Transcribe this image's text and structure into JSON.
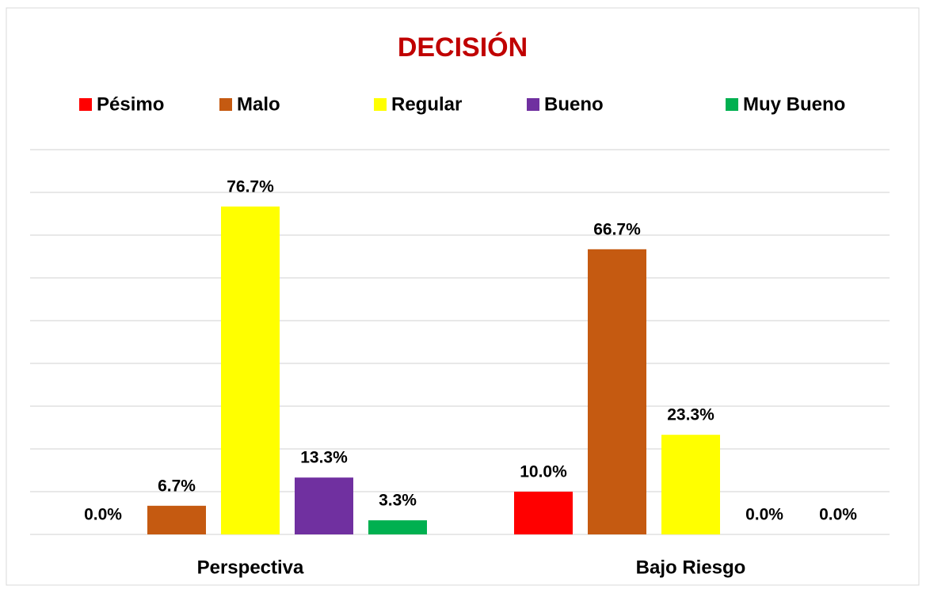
{
  "chart_data": {
    "type": "bar",
    "title": "DECISIÓN",
    "categories": [
      "Perspectiva",
      "Bajo Riesgo"
    ],
    "series": [
      {
        "name": "Pésimo",
        "color": "#ff0000",
        "values": [
          0.0,
          10.0
        ],
        "value_labels": [
          "0.0%",
          "10.0%"
        ]
      },
      {
        "name": "Malo",
        "color": "#c55a11",
        "values": [
          6.7,
          66.7
        ],
        "value_labels": [
          "6.7%",
          "66.7%"
        ]
      },
      {
        "name": "Regular",
        "color": "#ffff00",
        "values": [
          76.7,
          23.3
        ],
        "value_labels": [
          "76.7%",
          "23.3%"
        ]
      },
      {
        "name": "Bueno",
        "color": "#7030a0",
        "values": [
          13.3,
          0.0
        ],
        "value_labels": [
          "13.3%",
          "0.0%"
        ]
      },
      {
        "name": "Muy Bueno",
        "color": "#00b050",
        "values": [
          3.3,
          0.0
        ],
        "value_labels": [
          "3.3%",
          "0.0%"
        ]
      }
    ],
    "ylim": [
      0,
      90
    ],
    "yticks": [
      0,
      10,
      20,
      30,
      40,
      50,
      60,
      70,
      80,
      90
    ],
    "grid": true,
    "legend": "top"
  }
}
